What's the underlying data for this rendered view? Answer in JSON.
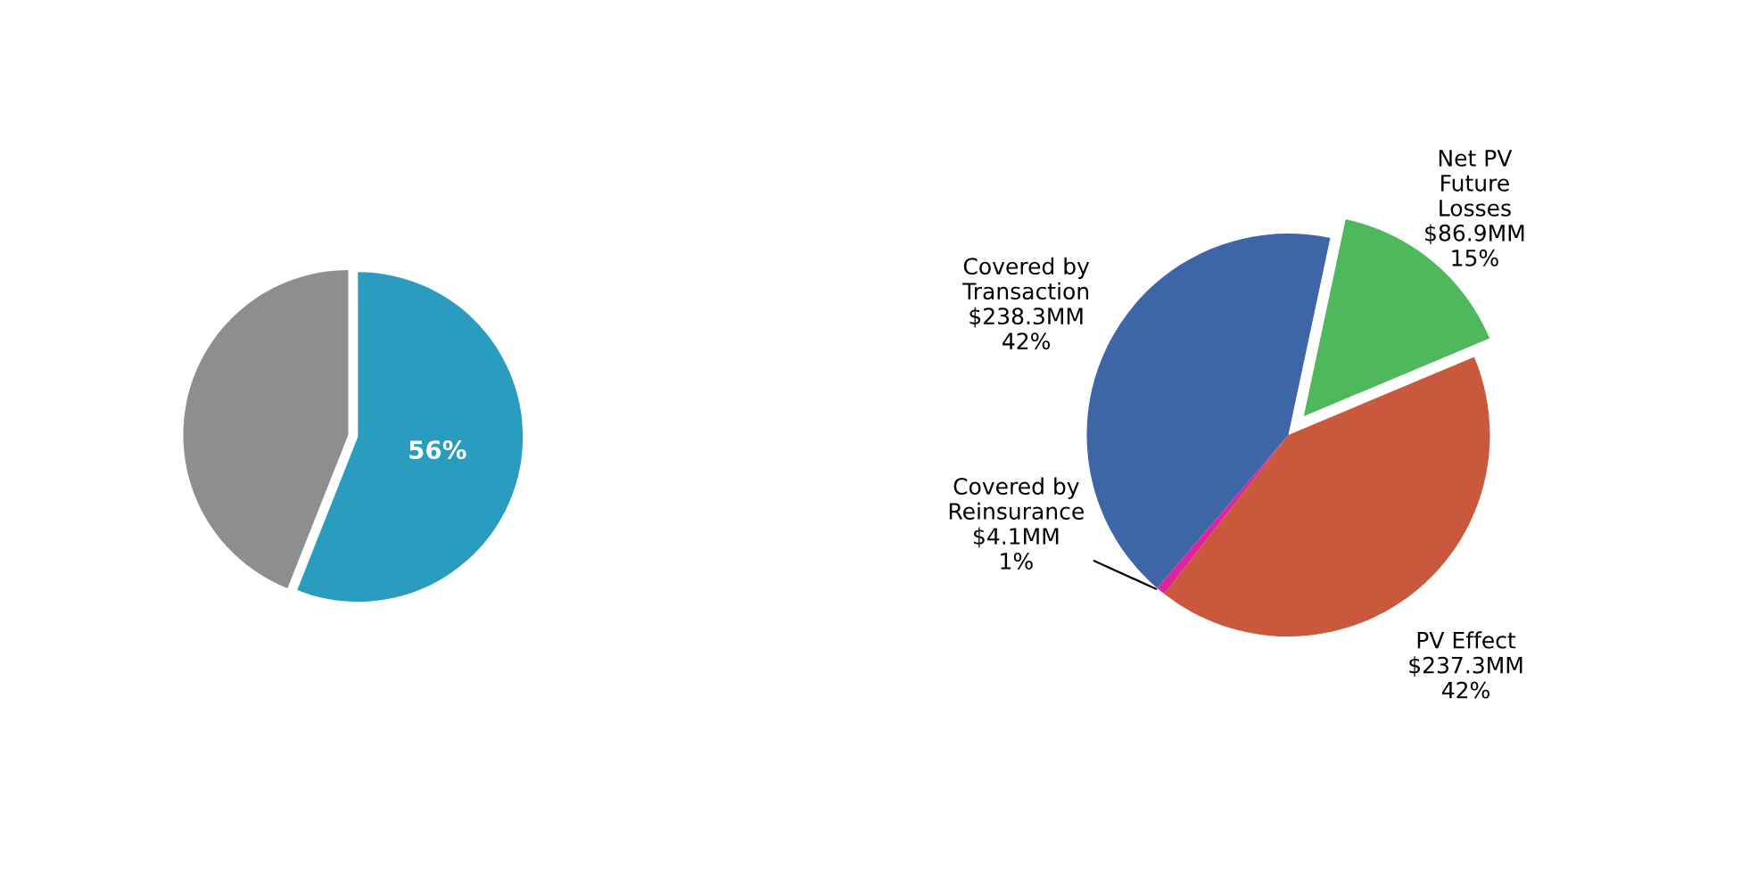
{
  "chart_data": [
    {
      "type": "pie",
      "categories": [
        null,
        null
      ],
      "values": [
        56,
        44
      ],
      "colors": [
        "#2a9cbf",
        "#8e8e8e"
      ],
      "value_labels": [
        "56%",
        null
      ]
    },
    {
      "type": "pie",
      "categories": [
        null,
        null,
        null,
        null
      ],
      "values": [
        86.9,
        237.3,
        4.1,
        238.3
      ],
      "colors": [
        "#4fb85c",
        "#c9583d",
        "#e0239c",
        "#3e66a6"
      ],
      "value_labels": [
        "Net PV\nFuture\nLosses\n$86.9MM\n15%",
        "PV Effect\n$237.3MM\n42%",
        "Covered by\nReinsurance\n$4.1MM\n1%",
        "Covered by\nTransaction\n$238.3MM\n42%"
      ]
    }
  ]
}
